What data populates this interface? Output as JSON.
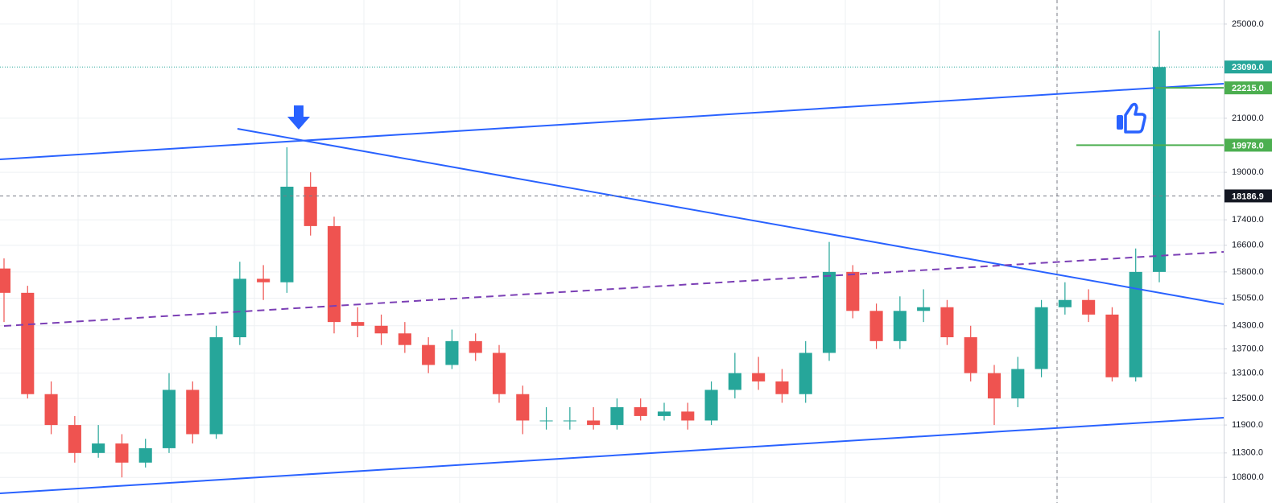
{
  "chart_data": {
    "type": "candlestick",
    "log_scale": true,
    "grid": true,
    "ylim": [
      10300,
      26140
    ],
    "yticks": [
      {
        "value": 25000,
        "label": "25000.0"
      },
      {
        "value": 21000,
        "label": "21000.0"
      },
      {
        "value": 19000,
        "label": "19000.0"
      },
      {
        "value": 17400,
        "label": "17400.0"
      },
      {
        "value": 16600,
        "label": "16600.0"
      },
      {
        "value": 15800,
        "label": "15800.0"
      },
      {
        "value": 15050,
        "label": "15050.0"
      },
      {
        "value": 14300,
        "label": "14300.0"
      },
      {
        "value": 13700,
        "label": "13700.0"
      },
      {
        "value": 13100,
        "label": "13100.0"
      },
      {
        "value": 12500,
        "label": "12500.0"
      },
      {
        "value": 11900,
        "label": "11900.0"
      },
      {
        "value": 11300,
        "label": "11300.0"
      },
      {
        "value": 10800,
        "label": "10800.0"
      }
    ],
    "up_color": "#26a69a",
    "down_color": "#ef5350",
    "open": [
      15900,
      15200,
      12600,
      11900,
      11300,
      11500,
      11100,
      11400,
      12700,
      11700,
      14000,
      15600,
      15500,
      18500,
      17200,
      14400,
      14300,
      14100,
      13800,
      13300,
      13900,
      13600,
      12600,
      12000,
      12000,
      12000,
      11900,
      12300,
      12100,
      12200,
      12000,
      12700,
      13100,
      12900,
      12600,
      13600,
      15800,
      14700,
      13900,
      14700,
      14800,
      14000,
      13100,
      12500,
      13200,
      14800,
      15000,
      14600,
      13000,
      15800
    ],
    "high": [
      16200,
      15400,
      12900,
      12100,
      11900,
      11700,
      11600,
      13100,
      12900,
      14300,
      16100,
      16000,
      19900,
      19000,
      17500,
      14800,
      14600,
      14400,
      14000,
      14200,
      14100,
      13800,
      12800,
      12300,
      12300,
      12300,
      12500,
      12500,
      12400,
      12400,
      12900,
      13600,
      13500,
      13200,
      13900,
      16700,
      16000,
      14900,
      15100,
      15300,
      15000,
      14300,
      13300,
      13500,
      15000,
      15500,
      15300,
      14800,
      16500,
      24700
    ],
    "low": [
      14400,
      12500,
      11700,
      11100,
      11200,
      10800,
      11000,
      11300,
      11500,
      11600,
      13800,
      15000,
      15200,
      16900,
      14100,
      14000,
      13800,
      13600,
      13100,
      13200,
      13400,
      12400,
      11700,
      11800,
      11800,
      11800,
      11800,
      12000,
      12000,
      11800,
      11900,
      12500,
      12700,
      12400,
      12400,
      13400,
      14500,
      13700,
      13700,
      14400,
      13800,
      12900,
      11900,
      12300,
      13000,
      14600,
      14400,
      12900,
      12900,
      15500
    ],
    "close": [
      15200,
      12600,
      11900,
      11300,
      11500,
      11100,
      11400,
      12700,
      11700,
      14000,
      15600,
      15500,
      18500,
      17200,
      14400,
      14300,
      14100,
      13800,
      13300,
      13900,
      13600,
      12600,
      12000,
      12000,
      12000,
      11900,
      12300,
      12100,
      12200,
      12000,
      12700,
      13100,
      12900,
      12600,
      13600,
      15800,
      14700,
      13900,
      14700,
      14800,
      14000,
      13100,
      12500,
      13200,
      14800,
      15000,
      14600,
      13000,
      15800,
      23090
    ],
    "markers": [
      {
        "value": 23090,
        "label": "23090.0",
        "color": "#26a69a",
        "style": "dotted"
      },
      {
        "value": 22215,
        "label": "22215.0",
        "color": "#4caf50",
        "style": "solid"
      },
      {
        "value": 19978,
        "label": "19978.0",
        "color": "#4caf50",
        "style": "solid"
      },
      {
        "value": 18186.9,
        "label": "18186.9",
        "color": "#131722",
        "style": "dashed"
      }
    ]
  }
}
